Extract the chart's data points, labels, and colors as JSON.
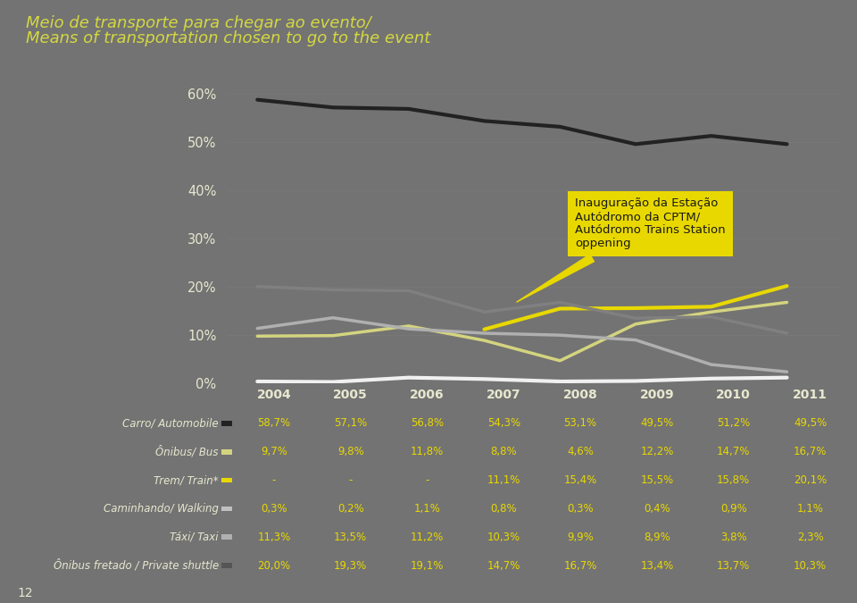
{
  "title_line1": "Meio de transporte para chegar ao evento/",
  "title_line2": "Means of transportation chosen to go to the event",
  "years": [
    2004,
    2005,
    2006,
    2007,
    2008,
    2009,
    2010,
    2011
  ],
  "series_order": [
    "Carro/ Automobile",
    "Ônibus/ Bus",
    "Trem/ Train*",
    "Caminhando/ Walking",
    "Táxi/ Taxi",
    "Ônibus fretado / Private shuttle"
  ],
  "series": {
    "Carro/ Automobile": {
      "values": [
        58.7,
        57.1,
        56.8,
        54.3,
        53.1,
        49.5,
        51.2,
        49.5
      ],
      "color": "#222222",
      "linewidth": 3.0
    },
    "Ônibus/ Bus": {
      "values": [
        9.7,
        9.8,
        11.8,
        8.8,
        4.6,
        12.2,
        14.7,
        16.7
      ],
      "color": "#d4d480",
      "linewidth": 2.5
    },
    "Trem/ Train*": {
      "values": [
        null,
        null,
        null,
        11.1,
        15.4,
        15.5,
        15.8,
        20.1
      ],
      "color": "#e8d800",
      "linewidth": 3.0
    },
    "Caminhando/ Walking": {
      "values": [
        0.3,
        0.2,
        1.1,
        0.8,
        0.3,
        0.4,
        0.9,
        1.1
      ],
      "color": "#f0f0f0",
      "linewidth": 3.0
    },
    "Táxi/ Taxi": {
      "values": [
        11.3,
        13.5,
        11.2,
        10.3,
        9.9,
        8.9,
        3.8,
        2.3
      ],
      "color": "#b0b0b0",
      "linewidth": 2.5
    },
    "Ônibus fretado / Private shuttle": {
      "values": [
        20.0,
        19.3,
        19.1,
        14.7,
        16.7,
        13.4,
        13.7,
        10.3
      ],
      "color": "#808080",
      "linewidth": 2.5
    }
  },
  "table_data": {
    "Carro/ Automobile": [
      "58,7%",
      "57,1%",
      "56,8%",
      "54,3%",
      "53,1%",
      "49,5%",
      "51,2%",
      "49,5%"
    ],
    "Ônibus/ Bus": [
      "9,7%",
      "9,8%",
      "11,8%",
      "8,8%",
      "4,6%",
      "12,2%",
      "14,7%",
      "16,7%"
    ],
    "Trem/ Train*": [
      "-",
      "-",
      "-",
      "11,1%",
      "15,4%",
      "15,5%",
      "15,8%",
      "20,1%"
    ],
    "Caminhando/ Walking": [
      "0,3%",
      "0,2%",
      "1,1%",
      "0,8%",
      "0,3%",
      "0,4%",
      "0,9%",
      "1,1%"
    ],
    "Táxi/ Taxi": [
      "11,3%",
      "13,5%",
      "11,2%",
      "10,3%",
      "9,9%",
      "8,9%",
      "3,8%",
      "2,3%"
    ],
    "Ônibus fretado / Private shuttle": [
      "20,0%",
      "19,3%",
      "19,1%",
      "14,7%",
      "16,7%",
      "13,4%",
      "13,7%",
      "10,3%"
    ]
  },
  "legend_colors": {
    "Carro/ Automobile": "#222222",
    "Ônibus/ Bus": "#d4d480",
    "Trem/ Train*": "#e8d800",
    "Caminhando/ Walking": "#c0c0c0",
    "Táxi/ Taxi": "#b0b0b0",
    "Ônibus fretado / Private shuttle": "#555555"
  },
  "bg_color": "#737373",
  "text_color": "#e8e8d0",
  "table_text_color": "#e8d800",
  "annotation_box_color": "#e8d800",
  "annotation_text_color": "#1a1a1a",
  "annotation_text": "Inauguração da Estação\nAutódromo da CPTM/\nAutódromo Trains Station\noppening",
  "ylim": [
    0,
    65
  ],
  "yticks": [
    0,
    10,
    20,
    30,
    40,
    50,
    60
  ]
}
